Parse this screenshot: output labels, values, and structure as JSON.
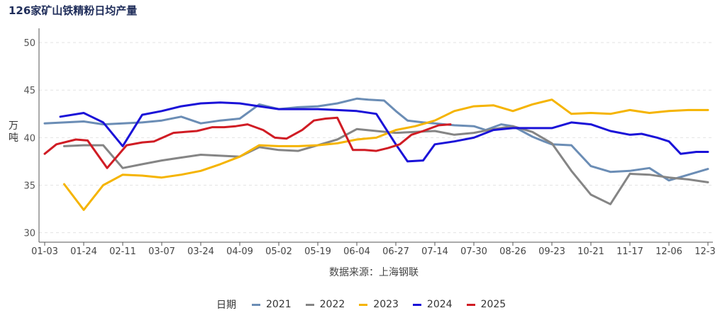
{
  "chart_data": {
    "type": "line",
    "title": "126家矿山铁精粉日均产量",
    "ylabel": "万吨",
    "source": "数据来源：上海钢联",
    "legend_title": "日期",
    "ylim": [
      30,
      50
    ],
    "yticks": [
      30,
      35,
      40,
      45,
      50
    ],
    "x_ticks": [
      "01-03",
      "01-24",
      "02-11",
      "03-07",
      "03-24",
      "04-09",
      "05-02",
      "05-19",
      "06-04",
      "06-27",
      "07-14",
      "07-30",
      "08-26",
      "09-23",
      "10-21",
      "11-17",
      "12-06",
      "12-3"
    ],
    "grid": true,
    "legend_position": "bottom",
    "series": [
      {
        "name": "2021",
        "color": "#6b8db5",
        "x": [
          0,
          0.5,
          1,
          1.5,
          2,
          2.5,
          3,
          3.5,
          4,
          4.5,
          5,
          5.5,
          6,
          6.5,
          7,
          7.5,
          8,
          8.3,
          8.7,
          9,
          9.3,
          9.7,
          10,
          10.5,
          11,
          11.3,
          11.7,
          12,
          12.5,
          12.8,
          13,
          13.5,
          14,
          14.5,
          15,
          15.5,
          16,
          16.5,
          17
        ],
        "values": [
          41.5,
          41.6,
          41.7,
          41.4,
          41.5,
          41.6,
          41.8,
          42.2,
          41.5,
          41.8,
          42.0,
          43.5,
          43.0,
          43.2,
          43.3,
          43.6,
          44.1,
          44.0,
          43.9,
          42.8,
          41.8,
          41.6,
          41.5,
          41.3,
          41.2,
          40.8,
          41.4,
          41.2,
          40.1,
          39.6,
          39.3,
          39.2,
          37.0,
          36.4,
          36.5,
          36.8,
          35.5,
          36.1,
          36.7
        ]
      },
      {
        "name": "2022",
        "color": "#858585",
        "x": [
          0.5,
          1,
          1.5,
          2,
          2.5,
          3,
          3.5,
          4,
          4.5,
          5,
          5.5,
          6,
          6.5,
          7,
          7.5,
          8,
          8.5,
          9,
          9.5,
          10,
          10.5,
          11,
          11.5,
          12,
          12.5,
          13,
          13.5,
          14,
          14.5,
          15,
          15.5,
          16,
          16.5,
          17
        ],
        "values": [
          39.1,
          39.2,
          39.2,
          36.8,
          37.2,
          37.6,
          37.9,
          38.2,
          38.1,
          38.0,
          39.0,
          38.7,
          38.6,
          39.2,
          39.8,
          40.9,
          40.7,
          40.5,
          40.6,
          40.7,
          40.3,
          40.5,
          40.9,
          41.2,
          40.6,
          39.4,
          36.5,
          34.0,
          33.0,
          36.2,
          36.1,
          35.8,
          35.6,
          35.3
        ]
      },
      {
        "name": "2023",
        "color": "#f5b400",
        "x": [
          0.5,
          1,
          1.5,
          2,
          2.5,
          3,
          3.5,
          4,
          4.5,
          5,
          5.5,
          6,
          6.5,
          7,
          7.5,
          8,
          8.5,
          9,
          9.5,
          10,
          10.5,
          11,
          11.5,
          12,
          12.5,
          13,
          13.5,
          14,
          14.5,
          15,
          15.5,
          16,
          16.5,
          17
        ],
        "values": [
          35.1,
          32.4,
          35.0,
          36.1,
          36.0,
          35.8,
          36.1,
          36.5,
          37.2,
          38.0,
          39.2,
          39.1,
          39.1,
          39.2,
          39.4,
          39.8,
          40.0,
          40.8,
          41.2,
          41.8,
          42.8,
          43.3,
          43.4,
          42.8,
          43.5,
          44.0,
          42.5,
          42.6,
          42.5,
          42.9,
          42.6,
          42.8,
          42.9,
          42.9
        ]
      },
      {
        "name": "2024",
        "color": "#1a12d8",
        "x": [
          0.4,
          1,
          1.5,
          2,
          2.5,
          3,
          3.5,
          4,
          4.5,
          5,
          5.5,
          6,
          6.5,
          7,
          7.5,
          8,
          8.5,
          9,
          9.3,
          9.7,
          10,
          10.5,
          11,
          11.5,
          12,
          12.5,
          13,
          13.5,
          14,
          14.5,
          15,
          15.3,
          15.7,
          16,
          16.3,
          16.7,
          17
        ],
        "values": [
          42.2,
          42.6,
          41.6,
          39.1,
          42.4,
          42.8,
          43.3,
          43.6,
          43.7,
          43.6,
          43.3,
          43.0,
          43.0,
          43.0,
          42.9,
          42.8,
          42.5,
          39.3,
          37.5,
          37.6,
          39.3,
          39.6,
          40.0,
          40.8,
          41.0,
          41.0,
          41.0,
          41.6,
          41.4,
          40.7,
          40.3,
          40.4,
          40.0,
          39.6,
          38.3,
          38.5,
          38.5
        ]
      },
      {
        "name": "2025",
        "color": "#d01c24",
        "x": [
          0,
          0.3,
          0.8,
          1.1,
          1.6,
          2.1,
          2.5,
          2.8,
          3.3,
          3.6,
          3.9,
          4.3,
          4.6,
          4.9,
          5.2,
          5.6,
          5.9,
          6.2,
          6.6,
          6.9,
          7.2,
          7.5,
          7.9,
          8.2,
          8.5,
          8.8,
          9.1,
          9.4,
          9.7,
          10.1,
          10.4
        ],
        "values": [
          38.3,
          39.3,
          39.8,
          39.7,
          36.8,
          39.2,
          39.5,
          39.6,
          40.5,
          40.6,
          40.7,
          41.1,
          41.1,
          41.2,
          41.4,
          40.8,
          40.0,
          39.9,
          40.8,
          41.8,
          42.0,
          42.1,
          38.7,
          38.7,
          38.6,
          38.9,
          39.3,
          40.3,
          40.7,
          41.3,
          41.4
        ]
      }
    ]
  }
}
